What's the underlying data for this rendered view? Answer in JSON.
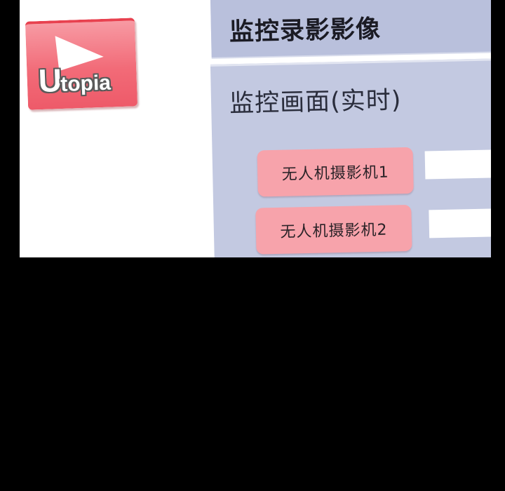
{
  "logo": {
    "letter": "U",
    "rest": "topia",
    "colors": {
      "box": "#f26b78",
      "play": "#ffffff",
      "outline": "#5a5a5a"
    },
    "icon": "play-icon"
  },
  "header": {
    "title": "监控录影影像"
  },
  "panel": {
    "title": "监控画面(实时)",
    "cameras": [
      {
        "label": "无人机摄影机1"
      },
      {
        "label": "无人机摄影机2"
      }
    ]
  },
  "colors": {
    "background": "#000000",
    "panel": "#c3c9e1",
    "header": "#b9c0dc",
    "button": "#f7a3ab"
  }
}
